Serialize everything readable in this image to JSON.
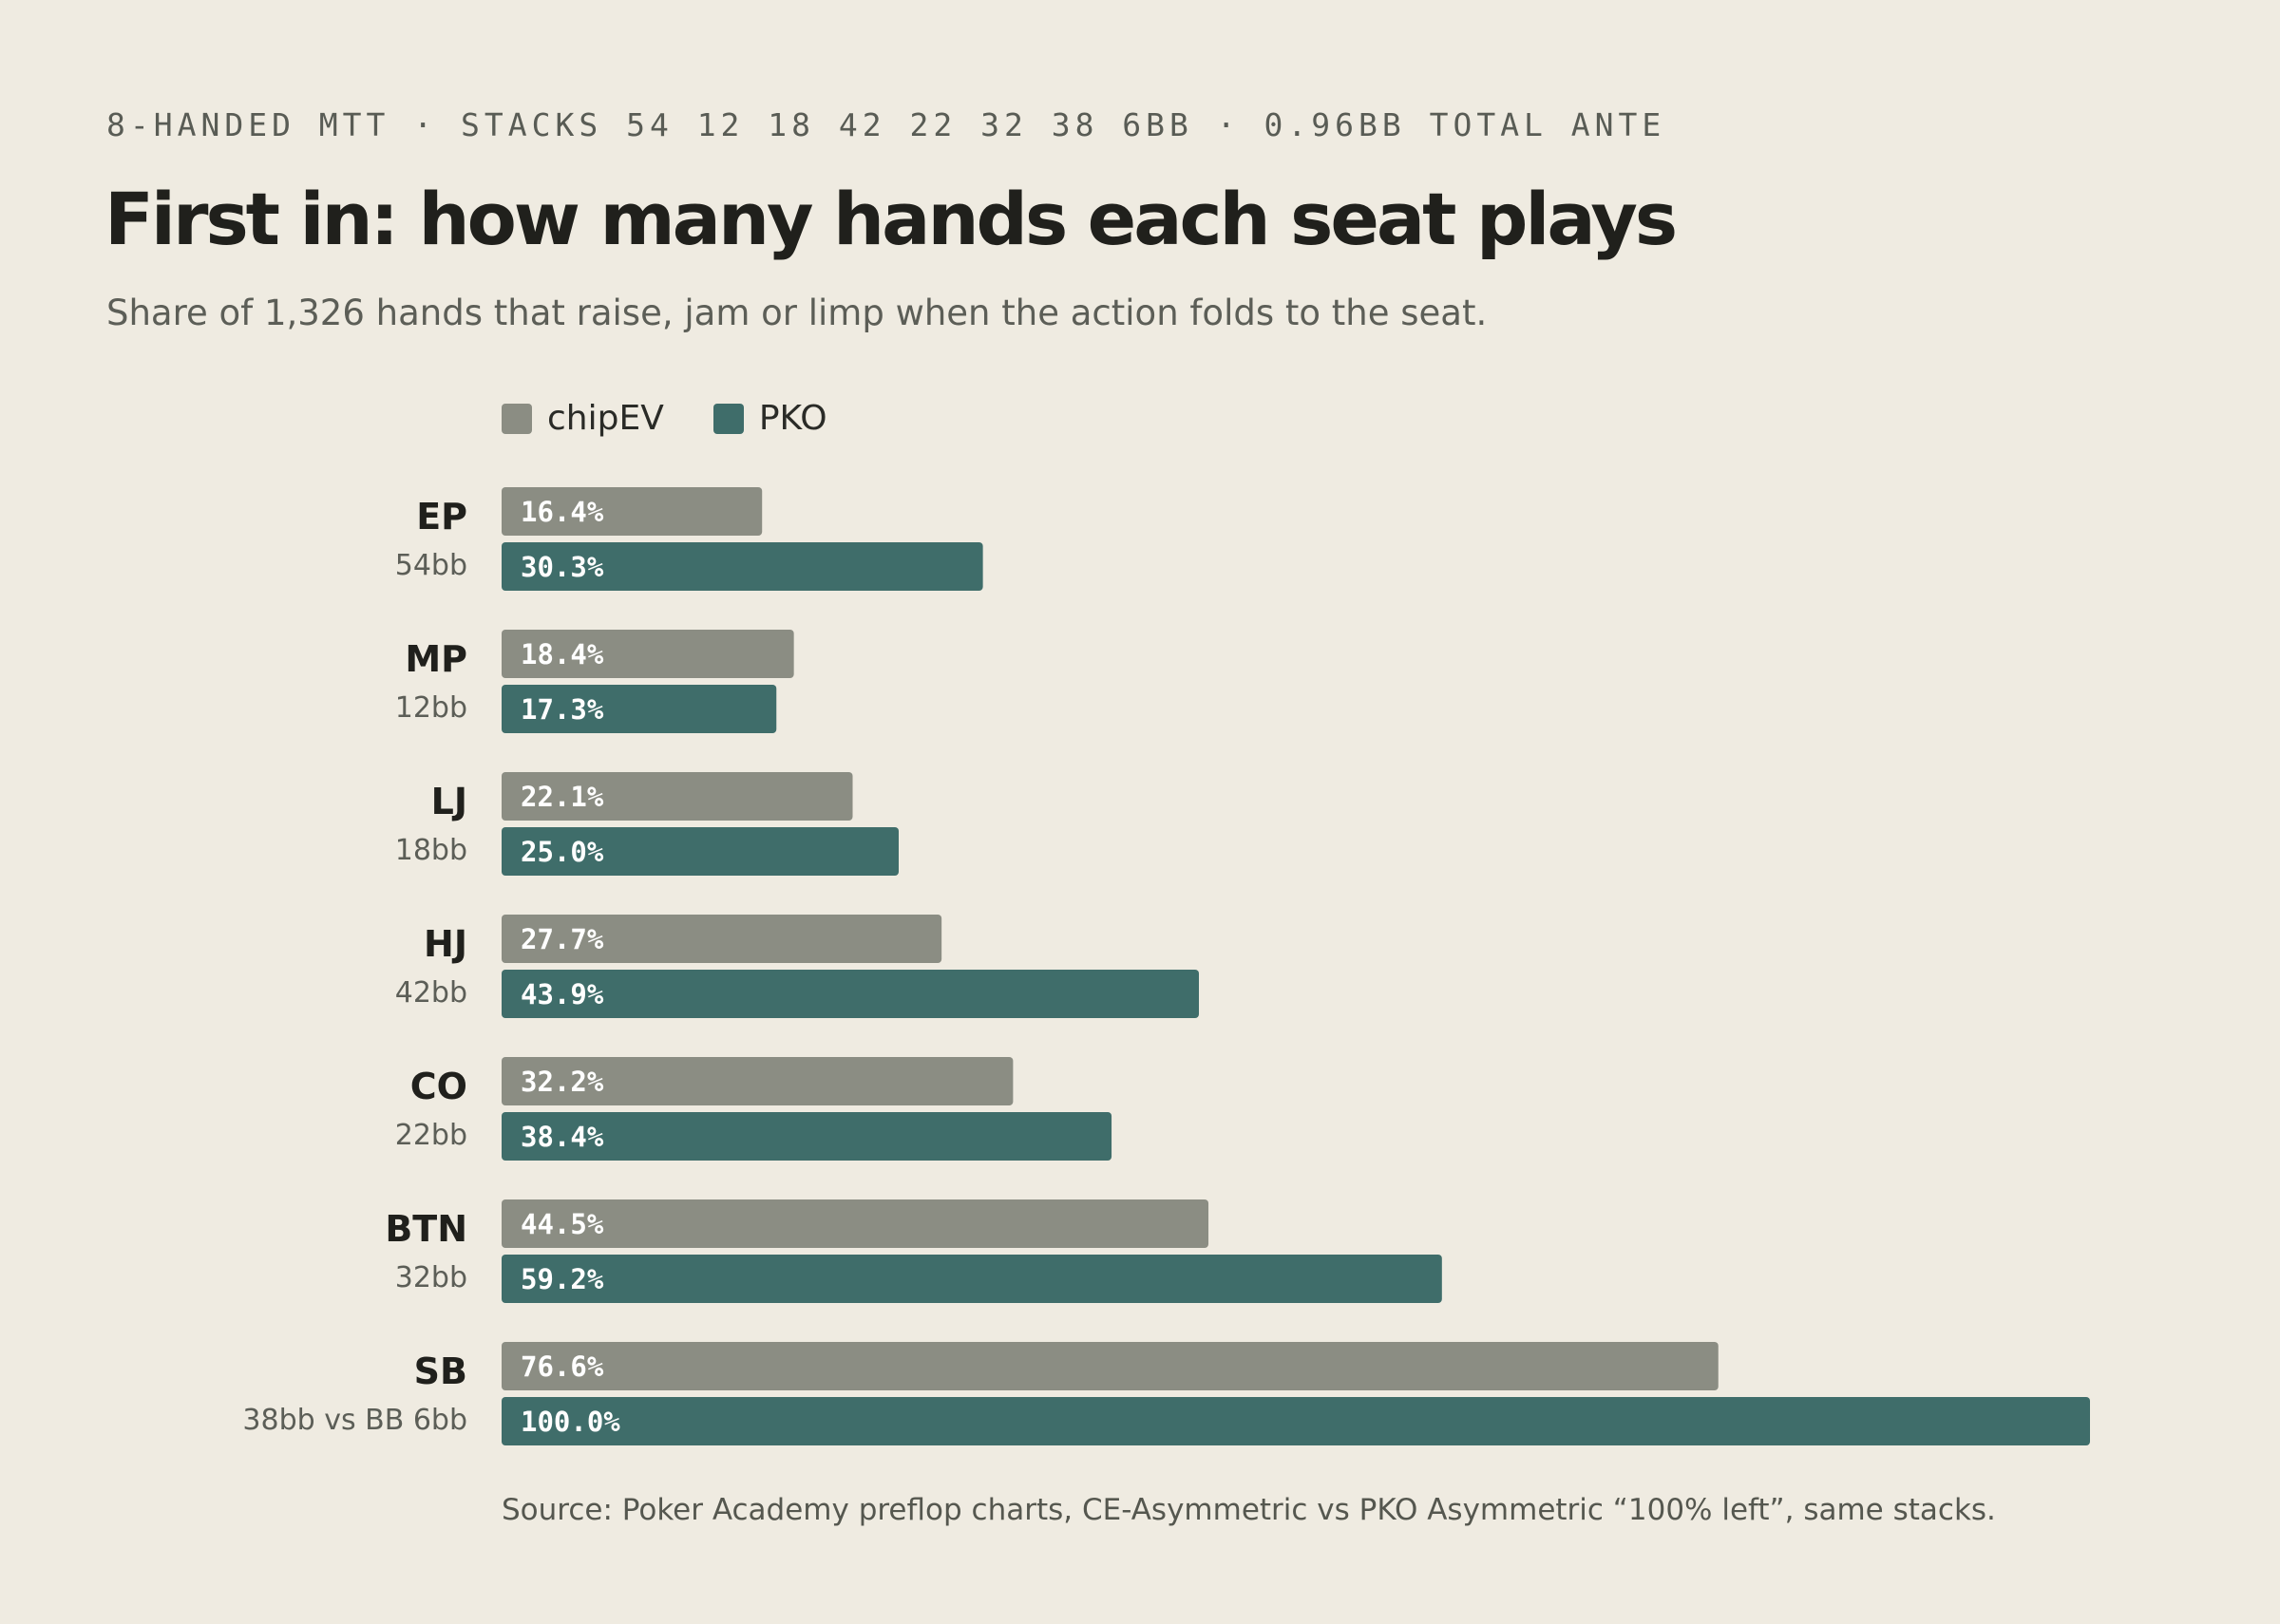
{
  "header": {
    "kicker": "8-HANDED MTT · STACKS 54 12 18 42 22 32 38 6BB · 0.96BB TOTAL ANTE",
    "title": "First in: how many hands each seat plays",
    "subtitle": "Share of 1,326 hands that raise, jam or limp when the action folds to the seat."
  },
  "footer": {
    "source": "Source: Poker Academy preflop charts, CE-Asymmetric vs PKO Asymmetric “100% left”, same stacks."
  },
  "colors": {
    "chipEV": "#8b8d83",
    "PKO": "#3f6d6a",
    "bar_label": "#ffffff",
    "seat_label": "#20201c",
    "stack_label": "#5c5e57"
  },
  "chart_data": {
    "type": "bar",
    "orientation": "horizontal",
    "categories": [
      "EP",
      "MP",
      "LJ",
      "HJ",
      "CO",
      "BTN",
      "SB"
    ],
    "category_sublabels": [
      "54bb",
      "12bb",
      "18bb",
      "42bb",
      "22bb",
      "32bb",
      "38bb vs BB 6bb"
    ],
    "series": [
      {
        "name": "chipEV",
        "values": [
          16.4,
          18.4,
          22.1,
          27.7,
          32.2,
          44.5,
          76.6
        ],
        "labels": [
          "16.4%",
          "18.4%",
          "22.1%",
          "27.7%",
          "32.2%",
          "44.5%",
          "76.6%"
        ]
      },
      {
        "name": "PKO",
        "values": [
          30.3,
          17.3,
          25.0,
          43.9,
          38.4,
          59.2,
          100.0
        ],
        "labels": [
          "30.3%",
          "17.3%",
          "25.0%",
          "43.9%",
          "38.4%",
          "59.2%",
          "100.0%"
        ]
      }
    ],
    "xlim": [
      0,
      100
    ],
    "value_unit": "%",
    "grid": false,
    "legend_position": "top-left"
  }
}
